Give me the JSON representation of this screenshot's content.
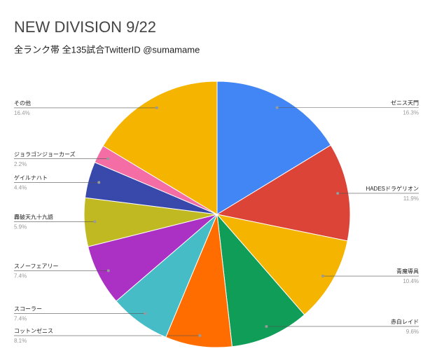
{
  "chart_data": {
    "type": "pie",
    "title": "NEW DIVISION 9/22",
    "subtitle": "全ランク帯 全135試合TwitterID @sumamame",
    "categories": [
      "ゼニス天門",
      "HADESドラゲリオン",
      "青魔導具",
      "赤白レイド",
      "コットンゼニス",
      "スコーラー",
      "スノーフェアリー",
      "轟破天九十九語",
      "ゲイルナハト",
      "ジョラゴンジョーカーズ",
      "その他"
    ],
    "values": [
      16.3,
      11.9,
      10.4,
      9.6,
      8.1,
      7.4,
      7.4,
      5.9,
      4.4,
      2.2,
      16.4
    ],
    "value_labels": [
      "16.3%",
      "11.9%",
      "10.4%",
      "9.6%",
      "8.1%",
      "7.4%",
      "7.4%",
      "5.9%",
      "4.4%",
      "2.2%",
      "16.4%"
    ],
    "colors": [
      "#4285f4",
      "#db4437",
      "#f4b400",
      "#0f9d58",
      "#ff6d00",
      "#46bdc6",
      "#ab30c4",
      "#c0b922",
      "#3949ab",
      "#f46ea5",
      "#f4b400"
    ]
  }
}
